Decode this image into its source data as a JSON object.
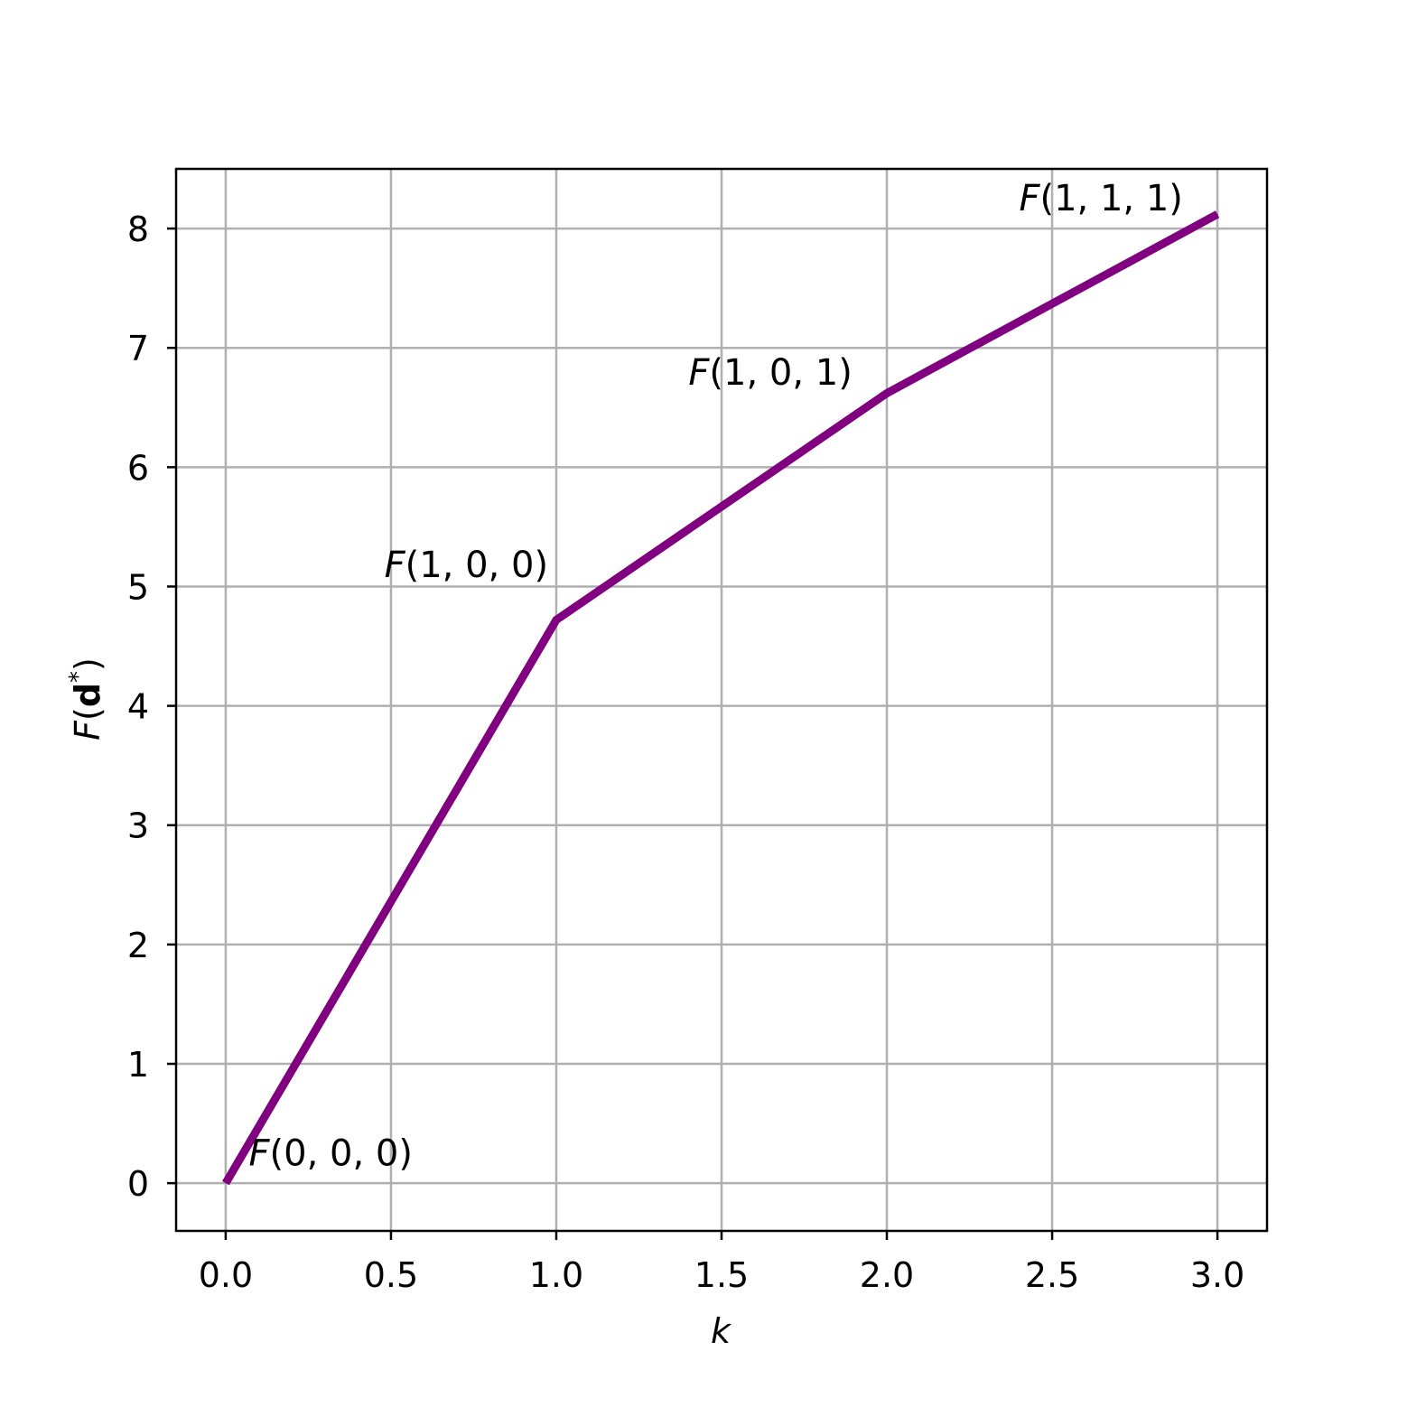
{
  "chart_data": {
    "type": "line",
    "x": [
      0,
      1,
      2,
      3
    ],
    "series": [
      {
        "values": [
          0,
          4.72,
          6.62,
          8.12
        ]
      }
    ],
    "xlabel": "k",
    "ylabel_parts": {
      "func": "F",
      "open": "(",
      "vec": "d",
      "sup": "*",
      "close": ")"
    },
    "xlim": [
      -0.15,
      3.15
    ],
    "ylim": [
      -0.4,
      8.5
    ],
    "xticks": [
      0.0,
      0.5,
      1.0,
      1.5,
      2.0,
      2.5,
      3.0
    ],
    "xtick_labels": [
      "0.0",
      "0.5",
      "1.0",
      "1.5",
      "2.0",
      "2.5",
      "3.0"
    ],
    "yticks": [
      0,
      1,
      2,
      3,
      4,
      5,
      6,
      7,
      8
    ],
    "ytick_labels": [
      "0",
      "1",
      "2",
      "3",
      "4",
      "5",
      "6",
      "7",
      "8"
    ],
    "grid": true,
    "line_color": "#800080",
    "annotations": [
      {
        "func": "F",
        "args": "(0, 0, 0)",
        "x": 0.07,
        "y": 0.15
      },
      {
        "func": "F",
        "args": "(1, 0, 0)",
        "x": 0.48,
        "y": 5.08
      },
      {
        "func": "F",
        "args": "(1, 0, 1)",
        "x": 1.4,
        "y": 6.69
      },
      {
        "func": "F",
        "args": "(1, 1, 1)",
        "x": 2.4,
        "y": 8.15
      }
    ]
  }
}
